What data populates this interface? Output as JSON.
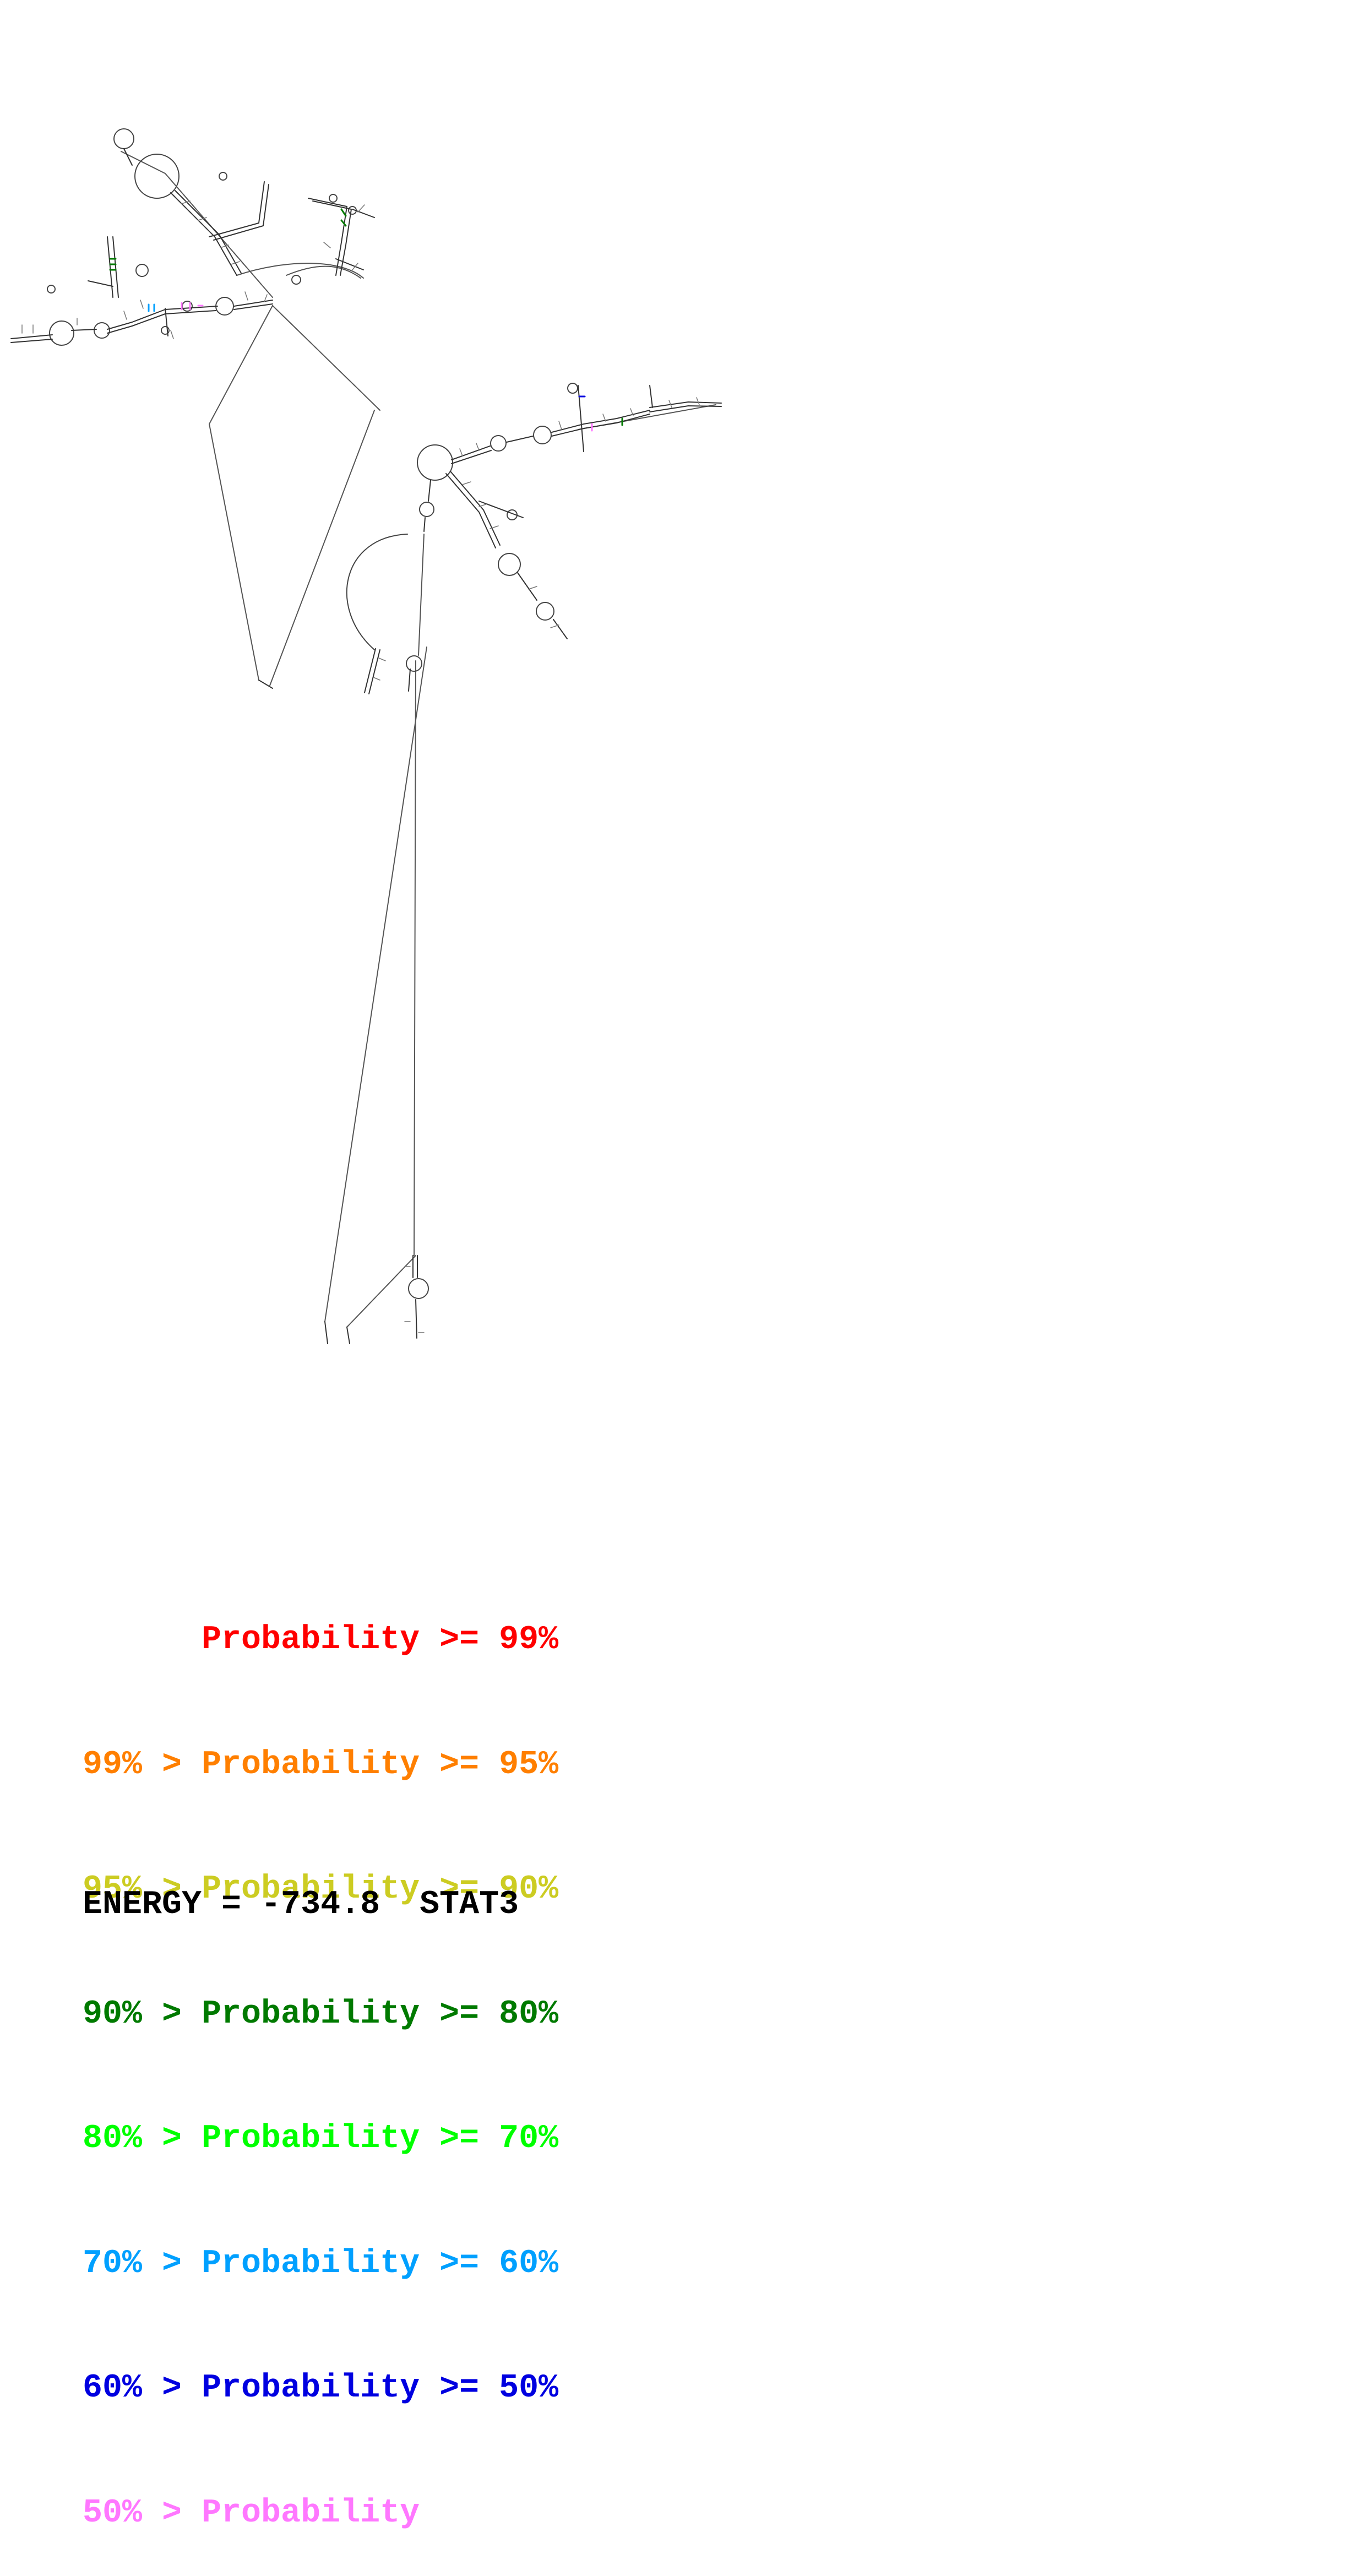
{
  "legend": {
    "rows": [
      {
        "text": "      Probability >= 99%",
        "color": "#ff0000"
      },
      {
        "text": "99% > Probability >= 95%",
        "color": "#ff7f00"
      },
      {
        "text": "95% > Probability >= 90%",
        "color": "#cccc22"
      },
      {
        "text": "90% > Probability >= 80%",
        "color": "#007a00"
      },
      {
        "text": "80% > Probability >= 70%",
        "color": "#00ff00"
      },
      {
        "text": "70% > Probability >= 60%",
        "color": "#00a0ff"
      },
      {
        "text": "60% > Probability >= 50%",
        "color": "#0000e0"
      },
      {
        "text": "50% > Probability",
        "color": "#ff77ff"
      }
    ]
  },
  "footer": {
    "energy_label": "ENERGY = -734.8",
    "name": "STAT3"
  },
  "colors": {
    "backbone": "#555555",
    "pair_default": "#000000"
  }
}
